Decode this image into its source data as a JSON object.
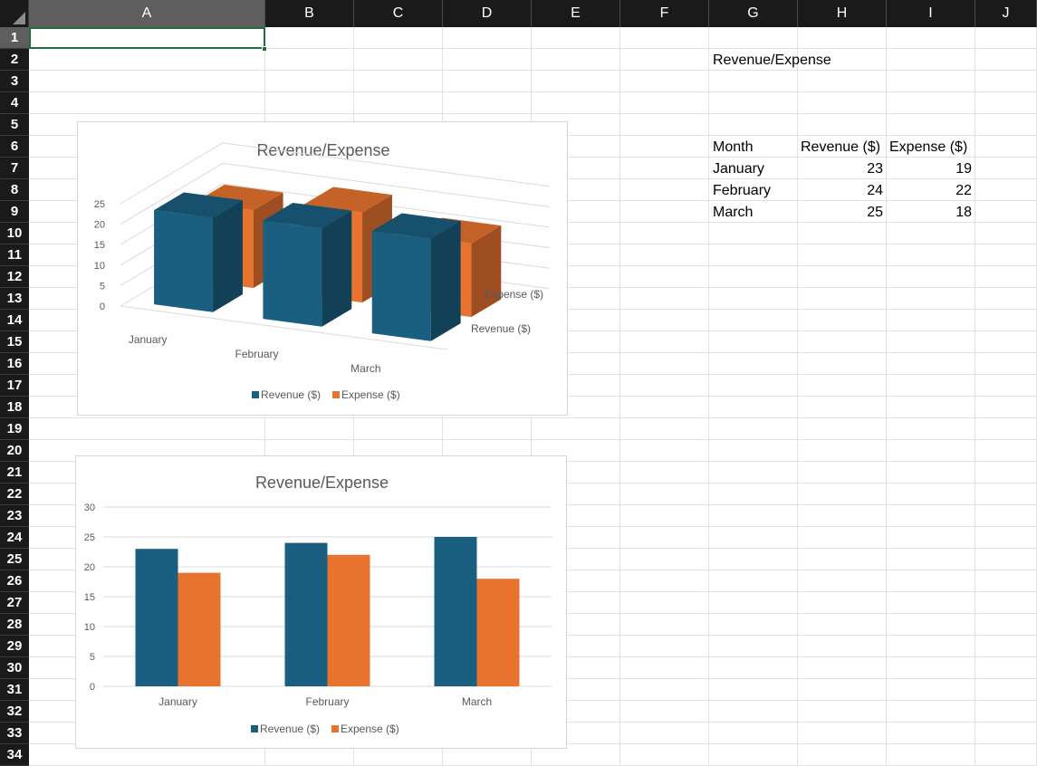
{
  "sheet": {
    "columns": [
      "A",
      "B",
      "C",
      "D",
      "E",
      "F",
      "G",
      "H",
      "I",
      "J"
    ],
    "rows": [
      "1",
      "2",
      "3",
      "4",
      "5",
      "6",
      "7",
      "8",
      "9",
      "10",
      "11",
      "12",
      "13",
      "14",
      "15",
      "16",
      "17",
      "18",
      "19",
      "20",
      "21",
      "22",
      "23",
      "24",
      "25",
      "26",
      "27",
      "28",
      "29",
      "30",
      "31",
      "32",
      "33",
      "34"
    ],
    "selected_cell": "A1"
  },
  "table": {
    "title": "Revenue/Expense",
    "headers": [
      "Month",
      "Revenue ($)",
      "Expense ($)"
    ],
    "rows": [
      [
        "January",
        "23",
        "19"
      ],
      [
        "February",
        "24",
        "22"
      ],
      [
        "March",
        "25",
        "18"
      ]
    ]
  },
  "colors": {
    "revenue": "#1a5e80",
    "expense": "#e8732f",
    "header_bg": "#1a1a1a",
    "selected_header_bg": "#5e5e5e",
    "selection_border": "#1e6e3e"
  },
  "chart_data": [
    {
      "type": "bar",
      "variant": "3d-column",
      "title": "Revenue/Expense",
      "categories": [
        "January",
        "February",
        "March"
      ],
      "series": [
        {
          "name": "Revenue ($)",
          "values": [
            23,
            24,
            25
          ]
        },
        {
          "name": "Expense ($)",
          "values": [
            19,
            22,
            18
          ]
        }
      ],
      "y_ticks": [
        "0",
        "5",
        "10",
        "15",
        "20",
        "25"
      ],
      "ylim": [
        0,
        25
      ],
      "depth_labels": [
        "Expense ($)",
        "Revenue ($)"
      ],
      "legend": "bottom",
      "grid": true
    },
    {
      "type": "bar",
      "title": "Revenue/Expense",
      "categories": [
        "January",
        "February",
        "March"
      ],
      "series": [
        {
          "name": "Revenue ($)",
          "values": [
            23,
            24,
            25
          ]
        },
        {
          "name": "Expense ($)",
          "values": [
            19,
            22,
            18
          ]
        }
      ],
      "y_ticks": [
        "0",
        "5",
        "10",
        "15",
        "20",
        "25",
        "30"
      ],
      "ylim": [
        0,
        30
      ],
      "legend": "bottom",
      "grid": true
    }
  ]
}
